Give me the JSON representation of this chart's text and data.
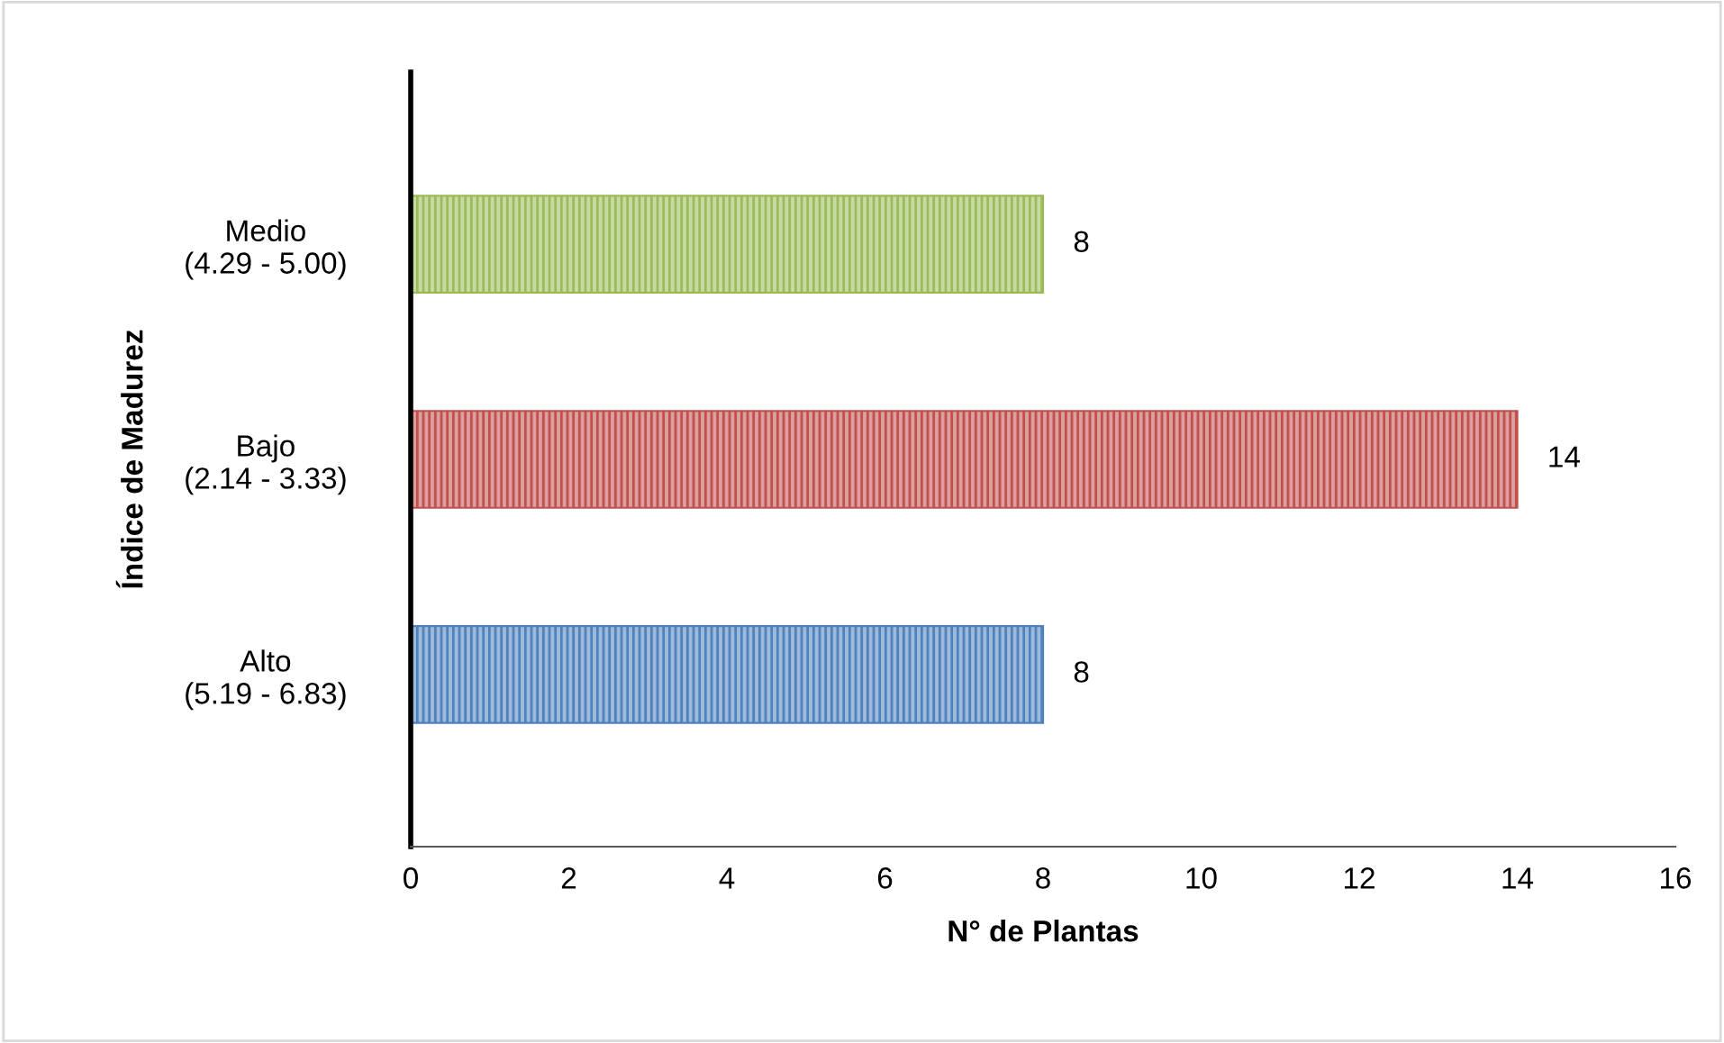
{
  "chart_data": {
    "type": "bar",
    "orientation": "horizontal",
    "xlabel": "N° de Plantas",
    "ylabel": "Índice de Madurez",
    "categories": [
      "Medio\n(4.29 - 5.00)",
      "Bajo\n(2.14 - 3.33)",
      "Alto\n(5.19 - 6.83)"
    ],
    "values": [
      8,
      14,
      8
    ],
    "colors": [
      "#9bbb59",
      "#c0504d",
      "#4f81bd"
    ],
    "xlim": [
      0,
      16
    ],
    "xticks": [
      0,
      2,
      4,
      6,
      8,
      10,
      12,
      14,
      16
    ],
    "data_labels": true,
    "grid": false,
    "legend": false
  }
}
